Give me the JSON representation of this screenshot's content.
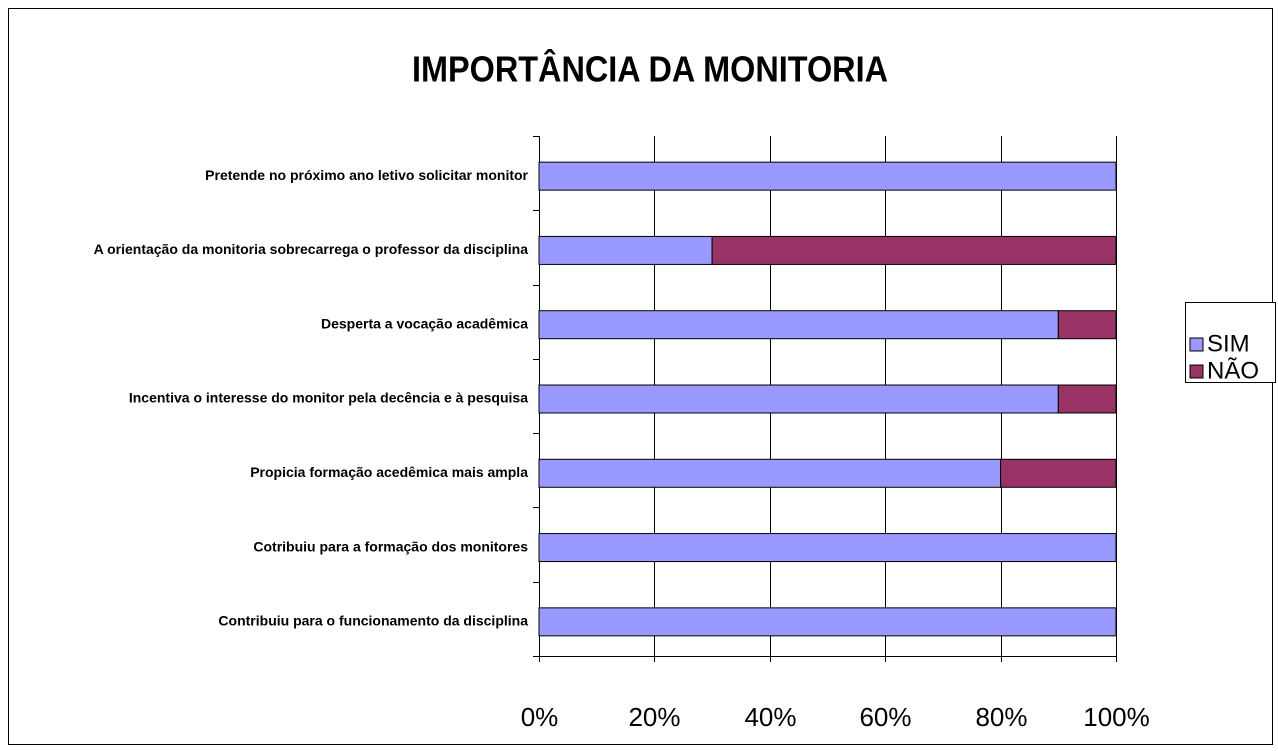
{
  "chart_data": {
    "type": "stacked_bar_horizontal",
    "title": "IMPORTÂNCIA DA MONITORIA",
    "categories": [
      "Pretende no próximo ano letivo solicitar monitor",
      "A orientação da monitoria sobrecarrega o professor da disciplina",
      "Desperta a vocação acadêmica",
      "Incentiva o interesse do monitor pela decência e à pesquisa",
      "Propicia formação acedêmica mais ampla",
      "Cotribuiu para a formação dos monitores",
      "Contribuiu para o funcionamento da disciplina"
    ],
    "series": [
      {
        "name": "SIM",
        "color": "#9999ff",
        "values": [
          100,
          30,
          90,
          90,
          80,
          100,
          100
        ]
      },
      {
        "name": "NÃO",
        "color": "#993366",
        "values": [
          0,
          70,
          10,
          10,
          20,
          0,
          0
        ]
      }
    ],
    "xlim": [
      0,
      100
    ],
    "xticks": [
      {
        "value": 0,
        "label": "0%"
      },
      {
        "value": 20,
        "label": "20%"
      },
      {
        "value": 40,
        "label": "40%"
      },
      {
        "value": 60,
        "label": "60%"
      },
      {
        "value": 80,
        "label": "80%"
      },
      {
        "value": 100,
        "label": "100%"
      }
    ],
    "grid": true,
    "legend": "right"
  }
}
